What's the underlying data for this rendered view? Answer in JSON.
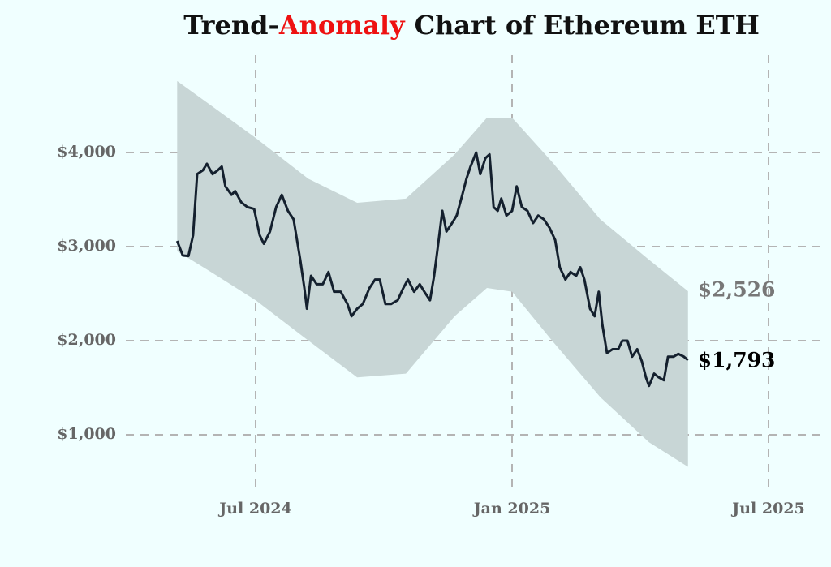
{
  "chart_data": {
    "type": "line",
    "title_parts": [
      "Trend-",
      "Anomaly",
      "Chart of Ethereum ETH"
    ],
    "title_colors": [
      "#111111",
      "#ee1111",
      "#111111"
    ],
    "xlim": [
      2024.2,
      2025.6
    ],
    "xticks": [
      {
        "value": 2024.5,
        "label": "Jul 2024"
      },
      {
        "value": 2025.0,
        "label": "Jan 2025"
      },
      {
        "value": 2025.5,
        "label": "Jul 2025"
      }
    ],
    "ylim": [
      450,
      5100
    ],
    "yticks": [
      {
        "value": 1000,
        "label": "$1,000"
      },
      {
        "value": 2000,
        "label": "$2,000"
      },
      {
        "value": 3000,
        "label": "$3,000"
      },
      {
        "value": 4000,
        "label": "$4,000"
      }
    ],
    "grid": true,
    "band": {
      "color": "#c8d6d6",
      "x": [
        2024.347,
        2024.413,
        2024.5,
        2024.603,
        2024.698,
        2024.793,
        2024.888,
        2024.951,
        2025.0,
        2025.078,
        2025.172,
        2025.267,
        2025.343
      ],
      "upper": [
        4760,
        4500,
        4155,
        3720,
        3465,
        3510,
        3980,
        4370,
        4370,
        3900,
        3290,
        2860,
        2526
      ],
      "lower": [
        2950,
        2730,
        2430,
        2000,
        1610,
        1650,
        2260,
        2560,
        2520,
        2000,
        1400,
        920,
        660
      ],
      "end_label": "$2,526"
    },
    "line": {
      "color": "#14202e",
      "x": [
        2024.347,
        2024.358,
        2024.369,
        2024.378,
        2024.386,
        2024.397,
        2024.405,
        2024.416,
        2024.426,
        2024.434,
        2024.441,
        2024.453,
        2024.46,
        2024.472,
        2024.484,
        2024.497,
        2024.508,
        2024.516,
        2024.528,
        2024.54,
        2024.551,
        2024.563,
        2024.574,
        2024.587,
        2024.595,
        2024.6,
        2024.608,
        2024.619,
        2024.631,
        2024.642,
        2024.653,
        2024.666,
        2024.679,
        2024.687,
        2024.698,
        2024.709,
        2024.722,
        2024.733,
        2024.742,
        2024.753,
        2024.764,
        2024.777,
        2024.788,
        2024.797,
        2024.809,
        2024.82,
        2024.829,
        2024.84,
        2024.848,
        2024.856,
        2024.864,
        2024.872,
        2024.883,
        2024.892,
        2024.903,
        2024.911,
        2024.919,
        2024.93,
        2024.938,
        2024.948,
        2024.956,
        2024.964,
        2024.972,
        2024.979,
        2024.989,
        2025.0,
        2025.009,
        2025.019,
        2025.03,
        2025.041,
        2025.051,
        2025.062,
        2025.073,
        2025.084,
        2025.093,
        2025.104,
        2025.114,
        2025.125,
        2025.133,
        2025.141,
        2025.152,
        2025.161,
        2025.169,
        2025.176,
        2025.185,
        2025.196,
        2025.207,
        2025.215,
        2025.225,
        2025.234,
        2025.244,
        2025.253,
        2025.261,
        2025.267,
        2025.277,
        2025.286,
        2025.296,
        2025.304,
        2025.315,
        2025.324,
        2025.335,
        2025.343
      ],
      "values": [
        3060,
        2905,
        2900,
        3120,
        3770,
        3810,
        3880,
        3770,
        3810,
        3850,
        3640,
        3550,
        3590,
        3470,
        3420,
        3400,
        3120,
        3030,
        3160,
        3420,
        3550,
        3380,
        3290,
        2860,
        2560,
        2340,
        2690,
        2600,
        2600,
        2730,
        2520,
        2520,
        2390,
        2260,
        2340,
        2390,
        2560,
        2650,
        2650,
        2390,
        2390,
        2430,
        2560,
        2650,
        2520,
        2600,
        2520,
        2430,
        2690,
        3030,
        3380,
        3160,
        3250,
        3330,
        3550,
        3720,
        3850,
        4000,
        3770,
        3940,
        3980,
        3420,
        3380,
        3510,
        3330,
        3380,
        3640,
        3420,
        3380,
        3250,
        3330,
        3290,
        3200,
        3070,
        2780,
        2650,
        2730,
        2690,
        2780,
        2650,
        2340,
        2260,
        2520,
        2170,
        1870,
        1910,
        1910,
        2000,
        2000,
        1830,
        1910,
        1780,
        1610,
        1520,
        1650,
        1610,
        1580,
        1830,
        1830,
        1860,
        1830,
        1793
      ],
      "end_label": "$1,793"
    }
  }
}
